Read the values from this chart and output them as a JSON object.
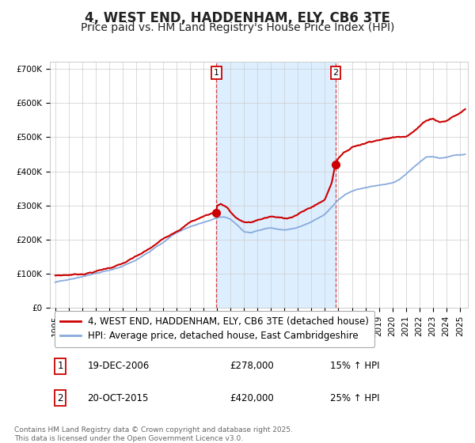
{
  "title": "4, WEST END, HADDENHAM, ELY, CB6 3TE",
  "subtitle": "Price paid vs. HM Land Registry's House Price Index (HPI)",
  "ylim": [
    0,
    720000
  ],
  "yticks": [
    0,
    100000,
    200000,
    300000,
    400000,
    500000,
    600000,
    700000
  ],
  "ytick_labels": [
    "£0",
    "£100K",
    "£200K",
    "£300K",
    "£400K",
    "£500K",
    "£600K",
    "£700K"
  ],
  "legend_property_label": "4, WEST END, HADDENHAM, ELY, CB6 3TE (detached house)",
  "legend_hpi_label": "HPI: Average price, detached house, East Cambridgeshire",
  "property_color": "#cc0000",
  "hpi_color": "#88aadd",
  "background_color": "#ffffff",
  "shade_color": "#ddeeff",
  "grid_color": "#cccccc",
  "sale1_year_f": 2006.958,
  "sale1_price": 278000,
  "sale1_date": "19-DEC-2006",
  "sale1_hpi": "15% ↑ HPI",
  "sale2_year_f": 2015.792,
  "sale2_price": 420000,
  "sale2_date": "20-OCT-2015",
  "sale2_hpi": "25% ↑ HPI",
  "footnote": "Contains HM Land Registry data © Crown copyright and database right 2025.\nThis data is licensed under the Open Government Licence v3.0.",
  "title_fontsize": 12,
  "subtitle_fontsize": 10,
  "tick_fontsize": 7.5,
  "legend_fontsize": 8.5,
  "annot_fontsize": 8.5
}
